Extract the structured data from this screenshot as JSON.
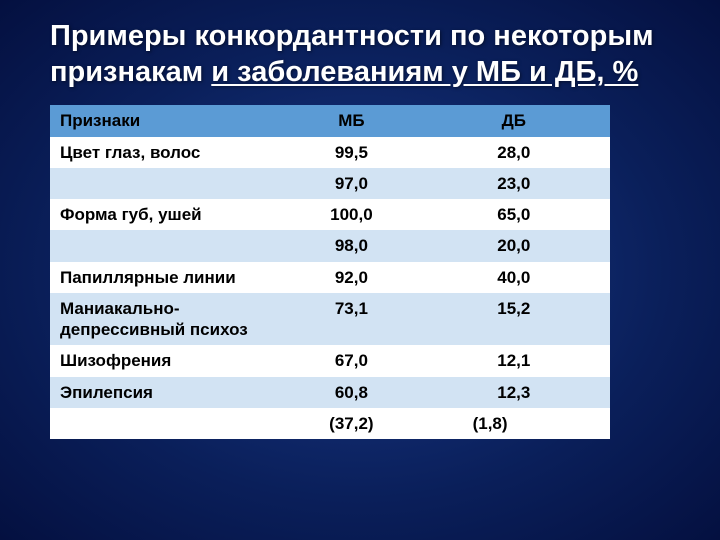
{
  "title": {
    "line1": "Примеры конкордантности по некоторым признакам ",
    "underlined": "и заболеваниям у МБ и ДБ, %"
  },
  "table": {
    "header_bg": "#5b9bd5",
    "alt_bg": "#d2e3f3",
    "plain_bg": "#ffffff",
    "text_color": "#000000",
    "columns": [
      "Признаки",
      "МБ",
      "ДБ"
    ],
    "rows": [
      {
        "label": "Цвет глаз, волос",
        "mb": "99,5",
        "db": "28,0",
        "shade": "plain"
      },
      {
        "label": "",
        "mb": "97,0",
        "db": "23,0",
        "shade": "alt"
      },
      {
        "label": "Форма губ, ушей",
        "mb": "100,0",
        "db": "65,0",
        "shade": "plain"
      },
      {
        "label": "",
        "mb": "98,0",
        "db": "20,0",
        "shade": "alt"
      },
      {
        "label": "Папиллярные линии",
        "mb": "92,0",
        "db": "40,0",
        "shade": "plain"
      },
      {
        "label": "Маниакально-депрессивный психоз",
        "mb": "73,1",
        "db": "15,2",
        "shade": "alt"
      },
      {
        "label": "Шизофрения",
        "mb": "67,0",
        "db": "12,1",
        "shade": "plain"
      },
      {
        "label": "Эпилепсия",
        "mb": "60,8",
        "db": "12,3",
        "shade": "alt"
      },
      {
        "label": "",
        "mb": "(37,2)",
        "db": "(1,8)",
        "shade": "plain"
      }
    ]
  }
}
